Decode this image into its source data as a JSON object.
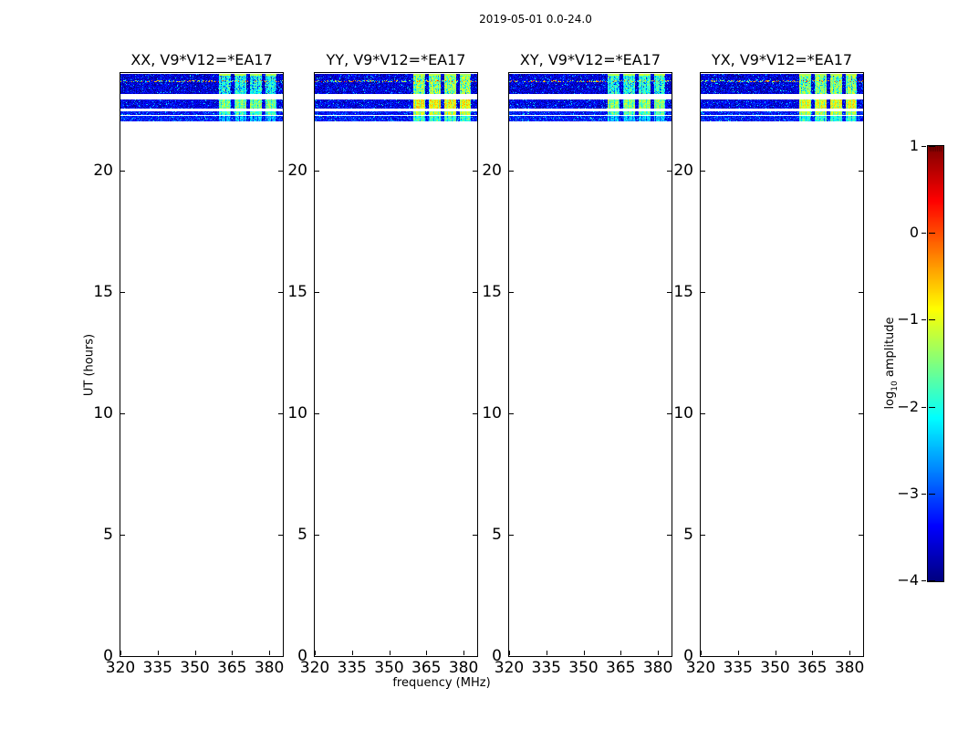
{
  "chart_data": {
    "type": "heatmap",
    "title": "2019-05-01 0.0-24.0",
    "xlabel": "frequency (MHz)",
    "ylabel": "UT (hours)",
    "x_range": [
      320,
      385.5
    ],
    "y_range": [
      0,
      24
    ],
    "x_ticks": {
      "labels": [
        "320",
        "335",
        "350",
        "365",
        "380"
      ],
      "values": [
        320,
        335,
        350,
        365,
        380
      ]
    },
    "y_ticks": {
      "labels": [
        "0",
        "5",
        "10",
        "15",
        "20"
      ],
      "values": [
        0,
        5,
        10,
        15,
        20
      ]
    },
    "grid": false,
    "panels": [
      {
        "id": "XX",
        "title": "XX, V9*V12=*EA17",
        "rfi_level": -1.9
      },
      {
        "id": "YY",
        "title": "YY, V9*V12=*EA17",
        "rfi_level": -1.25
      },
      {
        "id": "XY",
        "title": "XY, V9*V12=*EA17",
        "rfi_level": -1.8
      },
      {
        "id": "YX",
        "title": "YX, V9*V12=*EA17",
        "rfi_level": -1.35
      }
    ],
    "bands": [
      {
        "ut_start": 23.15,
        "ut_end": 23.95,
        "base": [
          -4.0,
          -3.15
        ],
        "rfi_offset": 0.0,
        "speckle_ut": 23.7,
        "bright_top": true
      },
      {
        "ut_start": 22.55,
        "ut_end": 22.9,
        "base": [
          -3.9,
          -3.1
        ],
        "rfi_offset": 0.4
      },
      {
        "ut_start": 22.28,
        "ut_end": 22.42,
        "base": [
          -3.7,
          -2.9
        ],
        "rfi_offset": 0.15
      },
      {
        "ut_start": 22.02,
        "ut_end": 22.22,
        "base": [
          -3.7,
          -2.85
        ],
        "rfi_offset": -0.55
      }
    ],
    "rfi_blocks_mhz": [
      [
        359.8,
        364.6
      ],
      [
        366.1,
        370.9
      ],
      [
        372.4,
        377.2
      ],
      [
        378.6,
        383.0
      ]
    ],
    "colorbar": {
      "colormap": "jet",
      "range": [
        -4,
        1
      ],
      "label_pre": "log",
      "label_sub": "10",
      "label_post": " amplitude",
      "ticks": {
        "labels": [
          "1",
          "0",
          "−1",
          "−2",
          "−3",
          "−4"
        ],
        "values": [
          1,
          0,
          -1,
          -2,
          -3,
          -4
        ]
      }
    },
    "colors": {
      "background": "#ffffff",
      "spine": "#000000",
      "noise_floor": "#00008c"
    }
  }
}
